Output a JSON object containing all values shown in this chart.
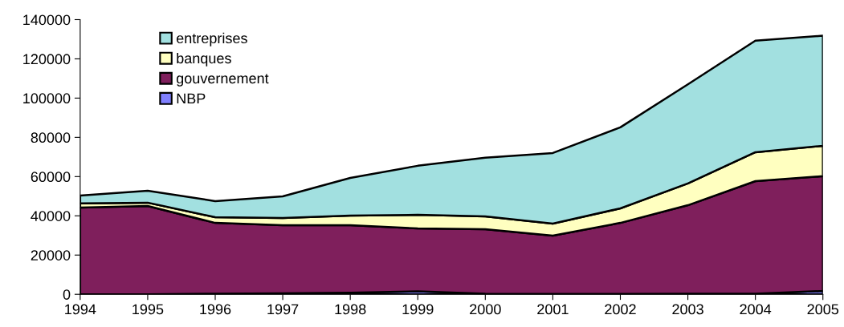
{
  "chart_data": {
    "type": "area",
    "stacked": true,
    "x": [
      1994,
      1995,
      1996,
      1997,
      1998,
      1999,
      2000,
      2001,
      2002,
      2003,
      2004,
      2005
    ],
    "series": [
      {
        "name": "NBP",
        "color": "#8080ff",
        "values": [
          0,
          0,
          300,
          500,
          800,
          1500,
          300,
          200,
          200,
          300,
          300,
          1700
        ]
      },
      {
        "name": "gouvernement",
        "color": "#7f1f5c",
        "values": [
          44200,
          45000,
          36100,
          34700,
          34400,
          32100,
          32900,
          29700,
          36200,
          45100,
          57400,
          58500
        ]
      },
      {
        "name": "banques",
        "color": "#ffffc0",
        "values": [
          2100,
          1700,
          2900,
          3700,
          4900,
          6900,
          6500,
          6100,
          7400,
          11100,
          14700,
          15500
        ]
      },
      {
        "name": "entreprises",
        "color": "#a2e0e0",
        "values": [
          4000,
          6100,
          8200,
          11000,
          19200,
          25000,
          29900,
          36000,
          41300,
          50500,
          56900,
          56100
        ]
      }
    ],
    "xlim": [
      1994,
      2005
    ],
    "xticks": [
      1994,
      1995,
      1996,
      1997,
      1998,
      1999,
      2000,
      2001,
      2002,
      2003,
      2004,
      2005
    ],
    "ylim": [
      0,
      140000
    ],
    "yticks": [
      0,
      20000,
      40000,
      60000,
      80000,
      100000,
      120000,
      140000
    ],
    "legend": "top left",
    "grid": false
  }
}
